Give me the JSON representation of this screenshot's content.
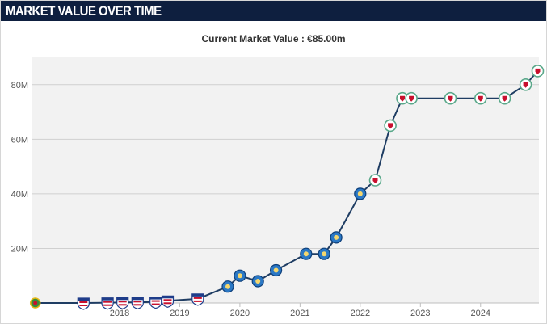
{
  "header": {
    "title": "MARKET VALUE OVER TIME"
  },
  "subtitle": "Current Market Value : €85.00m",
  "colors": {
    "header_bg": "#0e1f3f",
    "line": "#1f3d63",
    "plot_bg": "#f2f2f2",
    "grid": "#d0d0d0",
    "porto": "#2b78c5",
    "liverpool": "#c8102e",
    "junior": "#c8102e"
  },
  "chart_data": {
    "type": "line",
    "title": "Current Market Value : €85.00m",
    "xlabel": "",
    "ylabel": "",
    "ylim": [
      0,
      90
    ],
    "y_ticks": [
      20,
      40,
      60,
      80
    ],
    "y_tick_labels": [
      "20M",
      "40M",
      "60M",
      "80M"
    ],
    "x_range": [
      2016.55,
      2024.97
    ],
    "x_ticks": [
      2018,
      2019,
      2020,
      2021,
      2022,
      2023,
      2024
    ],
    "x_tick_labels": [
      "2018",
      "2019",
      "2020",
      "2021",
      "2022",
      "2023",
      "2024"
    ],
    "grid": true,
    "series": [
      {
        "values_unit": "M",
        "points": [
          {
            "x": 2016.6,
            "y": 0,
            "club": "other"
          },
          {
            "x": 2017.4,
            "y": 0,
            "club": "junior"
          },
          {
            "x": 2017.8,
            "y": 0.1,
            "club": "junior"
          },
          {
            "x": 2018.05,
            "y": 0.2,
            "club": "junior"
          },
          {
            "x": 2018.3,
            "y": 0.2,
            "club": "junior"
          },
          {
            "x": 2018.6,
            "y": 0.4,
            "club": "junior"
          },
          {
            "x": 2018.8,
            "y": 0.8,
            "club": "junior"
          },
          {
            "x": 2019.3,
            "y": 1.5,
            "club": "junior"
          },
          {
            "x": 2019.8,
            "y": 6,
            "club": "porto"
          },
          {
            "x": 2020.0,
            "y": 10,
            "club": "porto"
          },
          {
            "x": 2020.3,
            "y": 8,
            "club": "porto"
          },
          {
            "x": 2020.6,
            "y": 12,
            "club": "porto"
          },
          {
            "x": 2021.1,
            "y": 18,
            "club": "porto"
          },
          {
            "x": 2021.4,
            "y": 18,
            "club": "porto"
          },
          {
            "x": 2021.6,
            "y": 24,
            "club": "porto"
          },
          {
            "x": 2022.0,
            "y": 40,
            "club": "porto"
          },
          {
            "x": 2022.25,
            "y": 45,
            "club": "liverpool"
          },
          {
            "x": 2022.5,
            "y": 65,
            "club": "liverpool"
          },
          {
            "x": 2022.7,
            "y": 75,
            "club": "liverpool"
          },
          {
            "x": 2022.85,
            "y": 75,
            "club": "liverpool"
          },
          {
            "x": 2023.5,
            "y": 75,
            "club": "liverpool"
          },
          {
            "x": 2024.0,
            "y": 75,
            "club": "liverpool"
          },
          {
            "x": 2024.4,
            "y": 75,
            "club": "liverpool"
          },
          {
            "x": 2024.75,
            "y": 80,
            "club": "liverpool"
          },
          {
            "x": 2024.95,
            "y": 85,
            "club": "liverpool"
          }
        ]
      }
    ]
  }
}
